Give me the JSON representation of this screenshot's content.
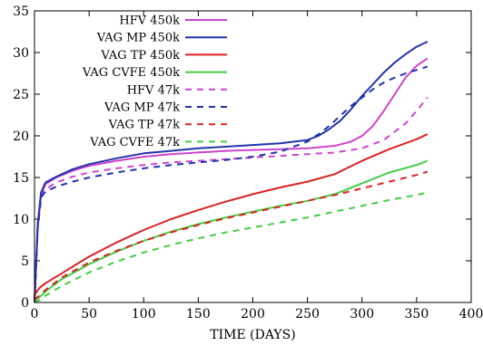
{
  "chart_data": {
    "type": "line",
    "title": "",
    "xlabel": "TIME (DAYS)",
    "ylabel": "",
    "xlim": [
      0,
      400
    ],
    "ylim": [
      0,
      35
    ],
    "xticks": [
      0,
      50,
      100,
      150,
      200,
      250,
      300,
      350,
      400
    ],
    "yticks": [
      0,
      5,
      10,
      15,
      20,
      25,
      30,
      35
    ],
    "grid": false,
    "legend_position": "top-left",
    "series": [
      {
        "name": "HFV 450k",
        "color": "#cc44cc",
        "dash": "solid",
        "x": [
          0,
          3,
          6,
          10,
          20,
          35,
          50,
          75,
          100,
          125,
          150,
          175,
          200,
          225,
          250,
          275,
          290,
          300,
          310,
          320,
          330,
          340,
          350,
          360
        ],
        "y": [
          0,
          9,
          12.8,
          14.2,
          15.0,
          15.8,
          16.4,
          17.0,
          17.5,
          17.8,
          18.0,
          18.2,
          18.3,
          18.4,
          18.5,
          18.8,
          19.3,
          20.0,
          21.2,
          23.0,
          25.0,
          27.0,
          28.4,
          29.3
        ]
      },
      {
        "name": "VAG MP 450k",
        "color": "#2233aa",
        "dash": "solid",
        "x": [
          0,
          3,
          6,
          10,
          20,
          35,
          50,
          75,
          100,
          125,
          150,
          175,
          200,
          225,
          250,
          260,
          270,
          280,
          290,
          300,
          310,
          320,
          330,
          340,
          350,
          360
        ],
        "y": [
          0,
          9.5,
          13.2,
          14.4,
          15.1,
          16.0,
          16.6,
          17.3,
          17.9,
          18.2,
          18.5,
          18.7,
          18.9,
          19.1,
          19.5,
          20.0,
          20.8,
          21.8,
          23.2,
          24.8,
          26.2,
          27.6,
          28.8,
          29.8,
          30.7,
          31.3
        ]
      },
      {
        "name": "VAG TP 450k",
        "color": "#dd2222",
        "dash": "solid",
        "x": [
          0,
          2,
          5,
          10,
          25,
          50,
          75,
          100,
          125,
          150,
          175,
          200,
          225,
          250,
          275,
          300,
          325,
          350,
          360
        ],
        "y": [
          0.8,
          1.3,
          1.8,
          2.3,
          3.5,
          5.5,
          7.2,
          8.7,
          10.0,
          11.1,
          12.1,
          13.0,
          13.8,
          14.5,
          15.4,
          17.0,
          18.4,
          19.6,
          20.2
        ]
      },
      {
        "name": "VAG CVFE 450k",
        "color": "#44cc44",
        "dash": "solid",
        "x": [
          0,
          5,
          10,
          25,
          50,
          75,
          100,
          125,
          150,
          175,
          200,
          225,
          250,
          275,
          300,
          325,
          350,
          360
        ],
        "y": [
          0.2,
          0.7,
          1.3,
          2.8,
          4.6,
          6.1,
          7.4,
          8.5,
          9.4,
          10.2,
          10.9,
          11.6,
          12.2,
          13.0,
          14.3,
          15.6,
          16.5,
          17.0
        ]
      },
      {
        "name": "HFV 47k",
        "color": "#cc44cc",
        "dash": "dashed",
        "x": [
          0,
          3,
          6,
          10,
          20,
          35,
          50,
          75,
          100,
          125,
          150,
          175,
          200,
          225,
          250,
          275,
          300,
          320,
          340,
          350,
          360
        ],
        "y": [
          0,
          9,
          12.5,
          13.6,
          14.4,
          15.1,
          15.6,
          16.1,
          16.5,
          16.8,
          17.0,
          17.2,
          17.4,
          17.6,
          17.8,
          18.0,
          18.5,
          19.5,
          21.5,
          23.0,
          24.6
        ]
      },
      {
        "name": "VAG MP 47k",
        "color": "#2233aa",
        "dash": "dashed",
        "x": [
          0,
          3,
          6,
          10,
          20,
          35,
          50,
          75,
          100,
          125,
          150,
          175,
          200,
          225,
          250,
          260,
          270,
          280,
          290,
          300,
          310,
          320,
          330,
          340,
          350,
          360
        ],
        "y": [
          0,
          9,
          12.6,
          13.3,
          13.9,
          14.5,
          15.0,
          15.6,
          16.1,
          16.5,
          16.8,
          17.1,
          17.5,
          18.1,
          19.3,
          20.2,
          21.2,
          22.4,
          23.6,
          24.6,
          25.6,
          26.4,
          27.0,
          27.5,
          27.9,
          28.3
        ]
      },
      {
        "name": "VAG TP 47k",
        "color": "#dd2222",
        "dash": "dashed",
        "x": [
          0,
          5,
          10,
          25,
          50,
          75,
          100,
          125,
          150,
          175,
          200,
          225,
          250,
          275,
          300,
          325,
          350,
          360
        ],
        "y": [
          0.3,
          0.9,
          1.5,
          3.0,
          4.8,
          6.2,
          7.4,
          8.4,
          9.3,
          10.1,
          10.8,
          11.5,
          12.2,
          12.9,
          13.7,
          14.5,
          15.3,
          15.7
        ]
      },
      {
        "name": "VAG CVFE 47k",
        "color": "#44cc44",
        "dash": "dashed",
        "x": [
          0,
          5,
          10,
          25,
          50,
          75,
          100,
          125,
          150,
          175,
          200,
          225,
          250,
          275,
          300,
          325,
          350,
          360
        ],
        "y": [
          0,
          0.3,
          0.8,
          2.0,
          3.6,
          4.9,
          6.0,
          6.9,
          7.7,
          8.4,
          9.0,
          9.6,
          10.2,
          10.9,
          11.6,
          12.3,
          12.9,
          13.2
        ]
      }
    ]
  }
}
